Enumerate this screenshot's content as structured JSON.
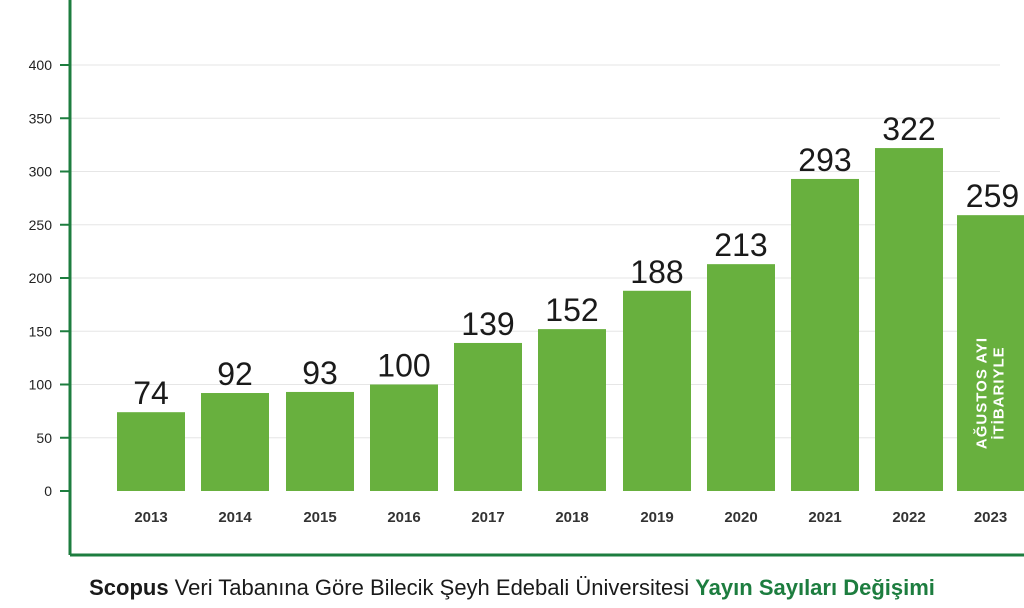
{
  "chart_data": {
    "type": "bar",
    "categories": [
      "2013",
      "2014",
      "2015",
      "2016",
      "2017",
      "2018",
      "2019",
      "2020",
      "2021",
      "2022",
      "2023"
    ],
    "values": [
      74,
      92,
      93,
      100,
      139,
      152,
      188,
      213,
      293,
      322,
      259
    ],
    "ylim": [
      0,
      400
    ],
    "yticks": [
      0,
      50,
      100,
      150,
      200,
      250,
      300,
      350,
      400
    ],
    "grid": true,
    "bar_color": "#68b03e",
    "axis_color": "#1d7d3f",
    "annotations": [
      {
        "category": "2023",
        "line1": "AĞUSTOS AYI",
        "line2": "İTİBARIYLE"
      }
    ]
  },
  "caption": {
    "part1": "Scopus",
    "part2": " Veri Tabanına Göre Bilecik Şeyh Edebali Üniversitesi ",
    "part3": "Yayın Sayıları Değişimi"
  }
}
